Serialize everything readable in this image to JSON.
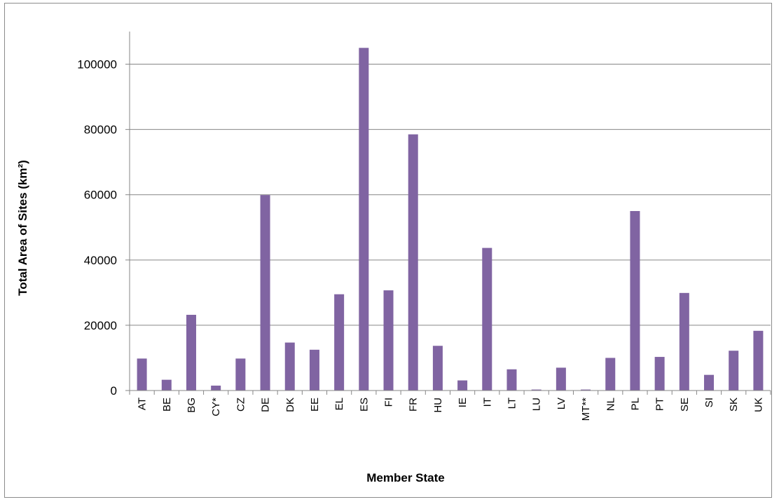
{
  "chart_data": {
    "type": "bar",
    "title": "",
    "xlabel": "Member State",
    "ylabel": "Total Area of Sites (km²)",
    "ylim": [
      0,
      110000
    ],
    "yticks": [
      0,
      20000,
      40000,
      60000,
      80000,
      100000
    ],
    "grid": true,
    "legend": "none",
    "bar_color": "#8064a2",
    "categories": [
      "AT",
      "BE",
      "BG",
      "CY*",
      "CZ",
      "DE",
      "DK",
      "EE",
      "EL",
      "ES",
      "FI",
      "FR",
      "HU",
      "IE",
      "IT",
      "LT",
      "LU",
      "LV",
      "MT**",
      "NL",
      "PL",
      "PT",
      "SE",
      "SI",
      "SK",
      "UK"
    ],
    "values": [
      9800,
      3300,
      23200,
      1500,
      9800,
      59900,
      14700,
      12500,
      29500,
      105000,
      30700,
      78500,
      13700,
      3100,
      43700,
      6500,
      300,
      7000,
      300,
      10000,
      55000,
      10300,
      29900,
      4800,
      12200,
      18300
    ]
  }
}
